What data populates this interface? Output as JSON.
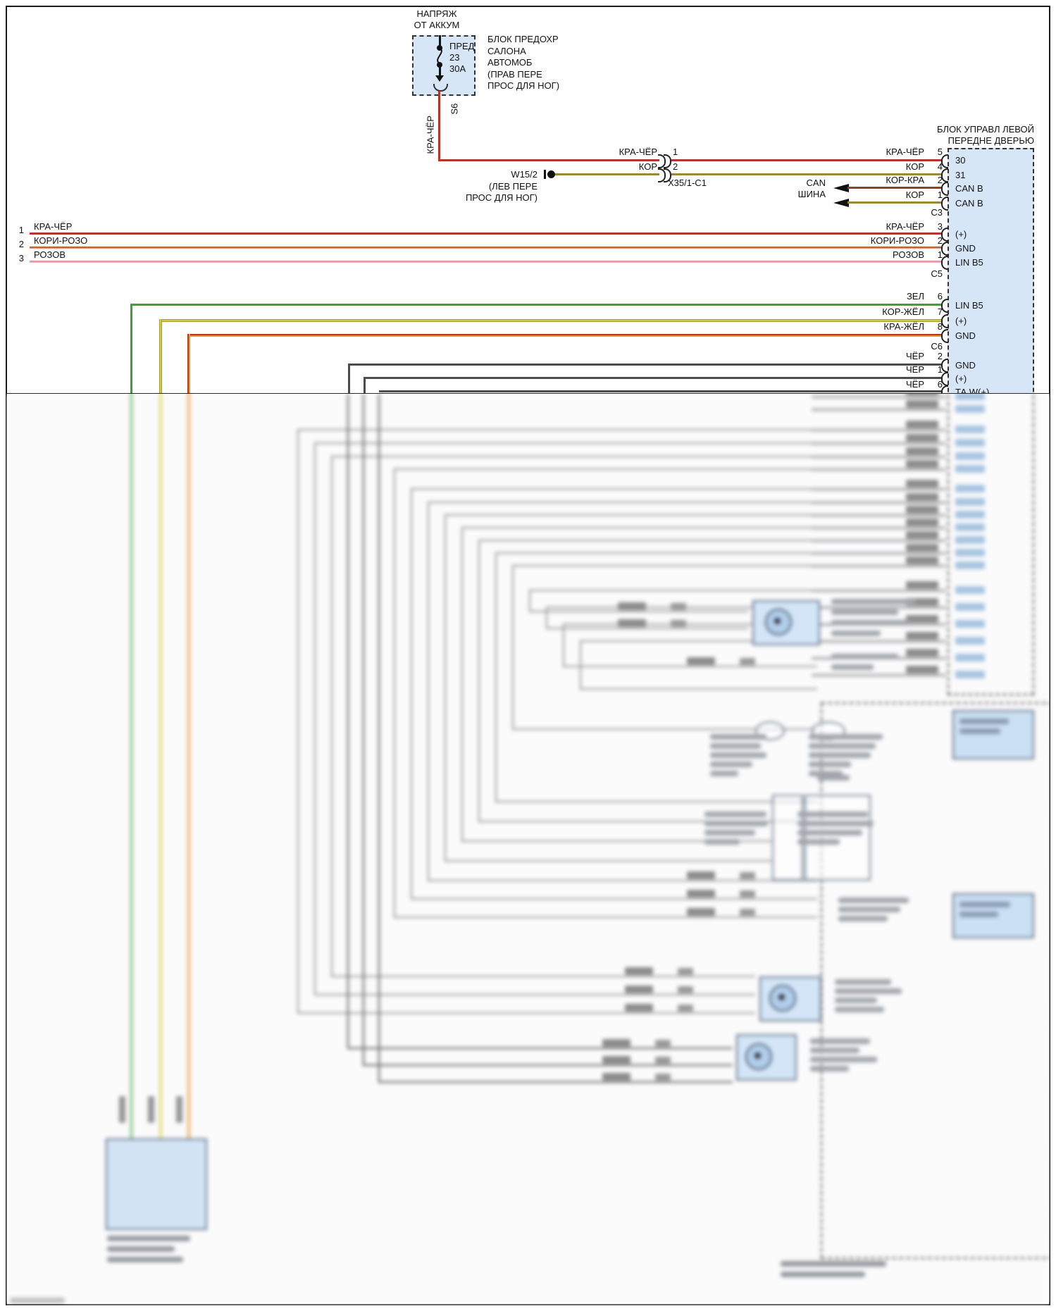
{
  "colors": {
    "red_black": "#b5342c",
    "brown": "#9f8735",
    "brown_red": "#8a4620",
    "brown_rose": "#a05c28",
    "rose": "#efa3b2",
    "green": "#3da136",
    "brown_yellow": "#ddd046",
    "red_yellow": "#e8962e",
    "black_wire": "#4c4c4c",
    "block_fill": "#d7e6f6",
    "line": "#1b1b1b"
  },
  "power": {
    "source_line1": "НАПРЯЖ",
    "source_line2": "ОТ АККУМ",
    "fuse_name": "ПРЕД",
    "fuse_number": "23",
    "fuse_rating": "30А",
    "box_label_lines": [
      "БЛОК ПРЕДОХР",
      "САЛОНА",
      "АВТОМОБ",
      "(ПРАВ ПЕРЕ",
      "ПРОС ДЛЯ НОГ)"
    ],
    "splice_id": "S6",
    "wire_label": "КРА-ЧЁР"
  },
  "ground": {
    "id": "W15/2",
    "loc1": "(ЛЕВ ПЕРЕ",
    "loc2": "ПРОС ДЛЯ НОГ)"
  },
  "connector": {
    "id": "X35/1-C1"
  },
  "can": {
    "line1": "CAN",
    "line2": "ШИНА"
  },
  "module": {
    "title1": "БЛОК УПРАВЛ ЛЕВОЙ",
    "title2": "ПЕРЕДНЕ ДВЕРЬЮ",
    "c3": "C3",
    "c5": "C5",
    "c6": "C6"
  },
  "rows": [
    {
      "label": "КРА-ЧЁР",
      "pin": "5",
      "signal": "30",
      "mid_label": "КРА-ЧЁР",
      "mid_pin": "1"
    },
    {
      "label": "КОР",
      "pin": "4",
      "signal": "31",
      "mid_label": "КОР",
      "mid_pin": "2"
    },
    {
      "label": "КОР-КРА",
      "pin": "2",
      "signal": "CAN B"
    },
    {
      "label": "КОР",
      "pin": "1",
      "signal": "CAN B"
    },
    {
      "ext": "1",
      "left_label": "КРА-ЧЁР",
      "label": "КРА-ЧЁР",
      "pin": "3",
      "signal": "(+)"
    },
    {
      "ext": "2",
      "left_label": "КОРИ-РОЗО",
      "label": "КОРИ-РОЗО",
      "pin": "2",
      "signal": "GND"
    },
    {
      "ext": "3",
      "left_label": "РОЗОВ",
      "label": "РОЗОВ",
      "pin": "1",
      "signal": "LIN B5"
    },
    {
      "label": "ЗЕЛ",
      "pin": "6",
      "signal": "LIN B5"
    },
    {
      "label": "КОР-ЖЁЛ",
      "pin": "7",
      "signal": "(+)"
    },
    {
      "label": "КРА-ЖЁЛ",
      "pin": "8",
      "signal": "GND"
    },
    {
      "label": "ЧЁР",
      "pin": "2",
      "signal": "GND"
    },
    {
      "label": "ЧЁР",
      "pin": "1",
      "signal": "(+)"
    },
    {
      "label": "ЧЁР",
      "pin": "6",
      "signal": "ТА W(+)"
    }
  ]
}
